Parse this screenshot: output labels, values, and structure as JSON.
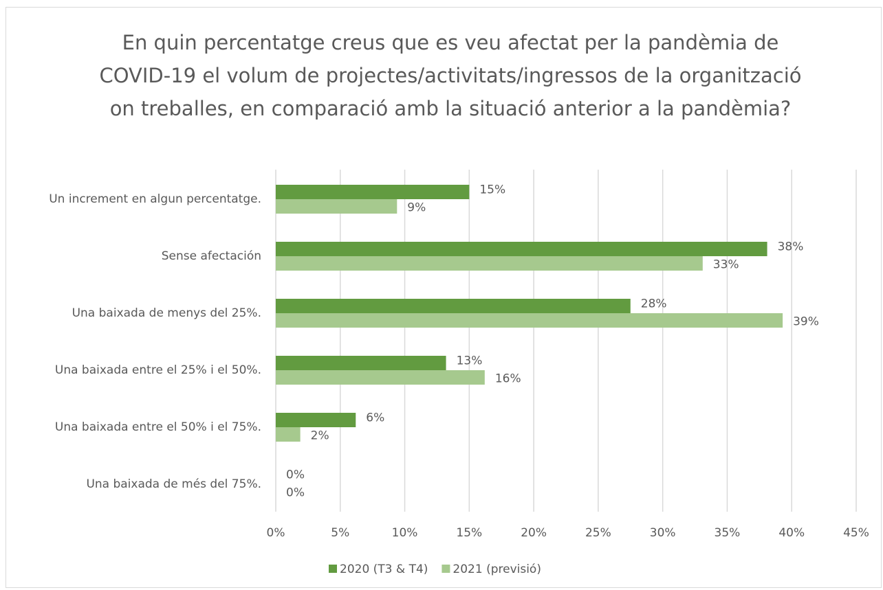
{
  "chart_data": {
    "type": "hbar",
    "title": "En quin percentatge creus que es veu afectat per la pandèmia de COVID-19 el volum de projectes/activitats/ingressos de la organització on treballes, en comparació amb la situació anterior a la pandèmia?",
    "categories": [
      "Un increment en algun percentatge.",
      "Sense afectación",
      "Una baixada de menys del 25%.",
      "Una baixada entre el 25% i el 50%.",
      "Una baixada entre el 50% i el 75%.",
      "Una baixada de més del 75%."
    ],
    "series": [
      {
        "name": "2020 (T3 & T4)",
        "color": "#629b40",
        "values": [
          15.0,
          38.1,
          27.5,
          13.2,
          6.2,
          0
        ],
        "value_labels": [
          "15%",
          "38%",
          "28%",
          "13%",
          "6%",
          "0%"
        ]
      },
      {
        "name": "2021 (previsió)",
        "color": "#a6c98e",
        "values": [
          9.4,
          33.1,
          39.3,
          16.2,
          1.9,
          0
        ],
        "value_labels": [
          "9%",
          "33%",
          "39%",
          "16%",
          "2%",
          "0%"
        ]
      }
    ],
    "xlim": [
      0,
      45
    ],
    "xticks": [
      {
        "value": 0,
        "label": "0%"
      },
      {
        "value": 5,
        "label": "5%"
      },
      {
        "value": 10,
        "label": "10%"
      },
      {
        "value": 15,
        "label": "15%"
      },
      {
        "value": 20,
        "label": "20%"
      },
      {
        "value": 25,
        "label": "25%"
      },
      {
        "value": 30,
        "label": "30%"
      },
      {
        "value": 35,
        "label": "35%"
      },
      {
        "value": 40,
        "label": "40%"
      },
      {
        "value": 45,
        "label": "45%"
      }
    ],
    "grid": true,
    "legend": "bottom"
  }
}
